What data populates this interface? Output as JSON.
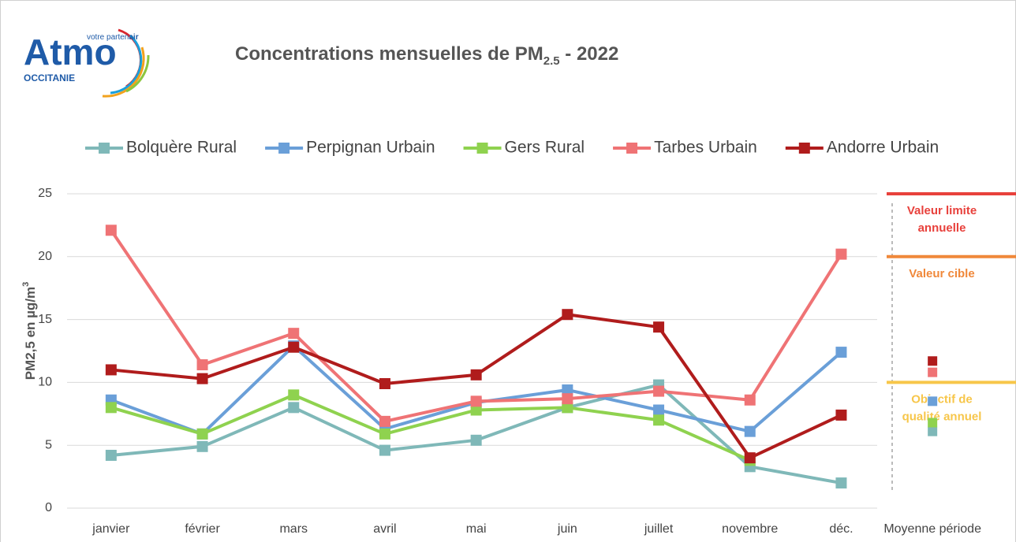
{
  "logo": {
    "name": "Atmo",
    "tagline_start": "votre parten",
    "tagline_end": "air",
    "region": "OCCITANIE"
  },
  "chart_data": {
    "type": "line",
    "title_parts": [
      "Concentrations mensuelles de PM",
      "2.5",
      " - 2022"
    ],
    "ylabel_parts": [
      "PM2,5 en µg/m",
      "3"
    ],
    "categories": [
      "janvier",
      "février",
      "mars",
      "avril",
      "mai",
      "juin",
      "juillet",
      "novembre",
      "déc."
    ],
    "mean_label": "Moyenne période",
    "ylim": [
      0,
      25
    ],
    "yticks": [
      0,
      5,
      10,
      15,
      20,
      25
    ],
    "grid": true,
    "legend": "top",
    "series": [
      {
        "name": "Bolquère Rural",
        "color": "#7fb8b8",
        "values": [
          4.2,
          4.9,
          8.0,
          4.6,
          5.4,
          8.0,
          9.8,
          3.3,
          2.0
        ],
        "mean": 6.1
      },
      {
        "name": "Perpignan Urbain",
        "color": "#6a9fd8",
        "values": [
          8.6,
          5.9,
          12.9,
          6.3,
          8.4,
          9.4,
          7.8,
          6.1,
          12.4
        ],
        "mean": 8.5
      },
      {
        "name": "Gers Rural",
        "color": "#8fd24f",
        "values": [
          8.0,
          5.9,
          9.0,
          5.9,
          7.8,
          8.0,
          7.0,
          3.8,
          null
        ],
        "mean": 6.8
      },
      {
        "name": "Tarbes Urbain",
        "color": "#ef7375",
        "values": [
          22.1,
          11.4,
          13.9,
          6.9,
          8.5,
          8.7,
          9.3,
          8.6,
          20.2
        ],
        "mean": 10.8
      },
      {
        "name": "Andorre Urbain",
        "color": "#b01c1c",
        "values": [
          11.0,
          10.3,
          12.8,
          9.9,
          10.6,
          15.4,
          14.4,
          4.0,
          7.4
        ],
        "mean": 11.7
      }
    ],
    "thresholds": [
      {
        "lines": [
          "Valeur limite",
          "annuelle"
        ],
        "value": 25,
        "color": "#e8413c"
      },
      {
        "lines": [
          "Valeur cible"
        ],
        "value": 20,
        "color": "#f0883a"
      },
      {
        "lines": [
          "Objectif de",
          "qualité annuel"
        ],
        "value": 10,
        "color": "#f7c64a"
      }
    ]
  }
}
